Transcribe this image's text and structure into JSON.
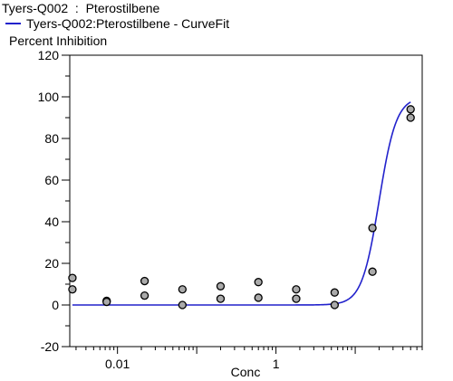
{
  "title": "Tyers-Q002  :  Pterostilbene",
  "legend": {
    "label": "Tyers-Q002:Pterostilbene - CurveFit",
    "color": "#2222cc"
  },
  "chart_data": {
    "type": "scatter",
    "title": "Tyers-Q002  :  Pterostilbene",
    "ylabel": "Percent Inhibition",
    "xlabel": "Conc",
    "xscale": "log",
    "xlim": [
      0.0025,
      70
    ],
    "ylim": [
      -20,
      120
    ],
    "yticks": [
      -20,
      0,
      20,
      40,
      60,
      80,
      100,
      120
    ],
    "xticks": [
      {
        "value": 0.01,
        "label": "0.01"
      },
      {
        "value": 1,
        "label": "1"
      }
    ],
    "grid": false,
    "series": [
      {
        "type": "scatter",
        "points": [
          {
            "x": 0.0027,
            "y": 13
          },
          {
            "x": 0.0027,
            "y": 7.5
          },
          {
            "x": 0.0073,
            "y": 2
          },
          {
            "x": 0.0073,
            "y": 1.5
          },
          {
            "x": 0.022,
            "y": 11.5
          },
          {
            "x": 0.022,
            "y": 4.5
          },
          {
            "x": 0.066,
            "y": 7.5
          },
          {
            "x": 0.066,
            "y": 0
          },
          {
            "x": 0.2,
            "y": 9
          },
          {
            "x": 0.2,
            "y": 3
          },
          {
            "x": 0.6,
            "y": 11
          },
          {
            "x": 0.6,
            "y": 3.5
          },
          {
            "x": 1.8,
            "y": 7.5
          },
          {
            "x": 1.8,
            "y": 3
          },
          {
            "x": 5.5,
            "y": 6
          },
          {
            "x": 5.5,
            "y": 0
          },
          {
            "x": 16.5,
            "y": 37
          },
          {
            "x": 16.5,
            "y": 16
          },
          {
            "x": 50,
            "y": 94
          },
          {
            "x": 50,
            "y": 90
          }
        ],
        "color": "#aaaaaa"
      },
      {
        "name": "Tyers-Q002:Pterostilbene - CurveFit",
        "type": "line",
        "color": "#2222cc",
        "fit": {
          "bottom": 0,
          "top": 100,
          "ec50": 20,
          "hill": 4
        },
        "xrange": [
          0.0027,
          50
        ]
      }
    ]
  }
}
